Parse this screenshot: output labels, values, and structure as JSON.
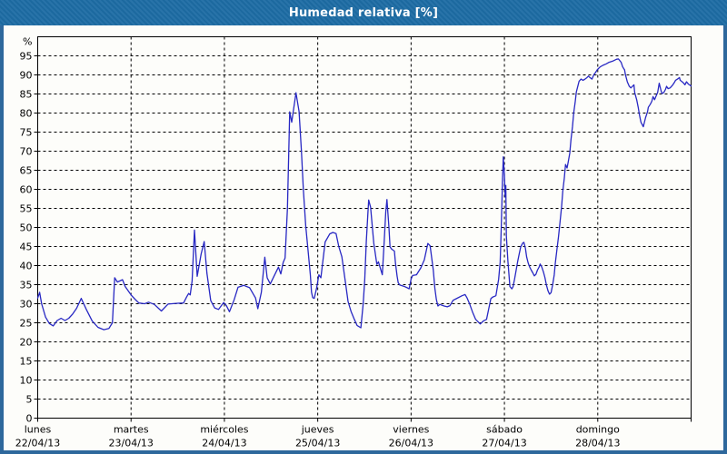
{
  "window": {
    "title": "Humedad relativa [%]",
    "title_bar_color": "#1d6ca4",
    "border_color": "#2e689c",
    "panel_background": "#fdfdfa"
  },
  "chart_data": {
    "type": "line",
    "title": "Humedad relativa [%]",
    "y_unit_label": "%",
    "ylim": [
      0,
      100
    ],
    "ytick_step": 5,
    "yticks": [
      0,
      5,
      10,
      15,
      20,
      25,
      30,
      35,
      40,
      45,
      50,
      55,
      60,
      65,
      70,
      75,
      80,
      85,
      90,
      95
    ],
    "grid": "dashed-black-both-axes",
    "legend": "none",
    "line_color": "#2828c3",
    "axis_color": "#000000",
    "days": [
      {
        "name": "lunes",
        "date": "22/04/13"
      },
      {
        "name": "martes",
        "date": "23/04/13"
      },
      {
        "name": "miércoles",
        "date": "24/04/13"
      },
      {
        "name": "jueves",
        "date": "25/04/13"
      },
      {
        "name": "viernes",
        "date": "26/04/13"
      },
      {
        "name": "sábado",
        "date": "27/04/13"
      },
      {
        "name": "domingo",
        "date": "28/04/13"
      }
    ],
    "series": [
      {
        "name": "Humedad relativa",
        "x_unit": "hours-from-monday-00:00",
        "points": [
          [
            0,
            31.5
          ],
          [
            0.5,
            33
          ],
          [
            1,
            30
          ],
          [
            2,
            26.5
          ],
          [
            3,
            24.8
          ],
          [
            4,
            24.2
          ],
          [
            5,
            25.6
          ],
          [
            6,
            26.2
          ],
          [
            7,
            25.6
          ],
          [
            8,
            26.2
          ],
          [
            9,
            27.3
          ],
          [
            10,
            28.8
          ],
          [
            11.2,
            31.4
          ],
          [
            12.5,
            28.5
          ],
          [
            14,
            25.5
          ],
          [
            15.5,
            23.8
          ],
          [
            17,
            23.2
          ],
          [
            18.3,
            23.5
          ],
          [
            19.2,
            25
          ],
          [
            19.8,
            36.8
          ],
          [
            20.5,
            35.7
          ],
          [
            21.8,
            36.3
          ],
          [
            22.5,
            34.5
          ],
          [
            24,
            32.3
          ],
          [
            25,
            31.2
          ],
          [
            26,
            30.2
          ],
          [
            27.5,
            30
          ],
          [
            28.5,
            30.4
          ],
          [
            30,
            29.8
          ],
          [
            31.8,
            28.1
          ],
          [
            33.5,
            29.9
          ],
          [
            35.5,
            30.1
          ],
          [
            37.5,
            30.2
          ],
          [
            38.3,
            31.8
          ],
          [
            38.8,
            32.7
          ],
          [
            39.2,
            32.3
          ],
          [
            39.7,
            36
          ],
          [
            40.3,
            49.3
          ],
          [
            41,
            37.2
          ],
          [
            42,
            43
          ],
          [
            42.8,
            46.3
          ],
          [
            43.5,
            38
          ],
          [
            44.5,
            30.8
          ],
          [
            45.5,
            28.9
          ],
          [
            46.5,
            28.5
          ],
          [
            47.8,
            30.3
          ],
          [
            48.5,
            29.5
          ],
          [
            49.3,
            27.9
          ],
          [
            50.5,
            31
          ],
          [
            51.5,
            34.3
          ],
          [
            53,
            34.8
          ],
          [
            54.5,
            34.2
          ],
          [
            56,
            31.5
          ],
          [
            56.6,
            28.7
          ],
          [
            57.5,
            33
          ],
          [
            58.4,
            42.2
          ],
          [
            59,
            36.8
          ],
          [
            59.8,
            35.2
          ],
          [
            61.9,
            39.6
          ],
          [
            62.5,
            37.8
          ],
          [
            63.1,
            40.8
          ],
          [
            63.6,
            42
          ],
          [
            64.2,
            55
          ],
          [
            64.8,
            80.3
          ],
          [
            65.3,
            77.6
          ],
          [
            66.4,
            85.3
          ],
          [
            67.2,
            80.4
          ],
          [
            67.8,
            70
          ],
          [
            68.3,
            60
          ],
          [
            68.9,
            50.5
          ],
          [
            69.5,
            44.2
          ],
          [
            70.1,
            37.6
          ],
          [
            70.4,
            33
          ],
          [
            70.7,
            31.6
          ],
          [
            71.1,
            31.4
          ],
          [
            71.7,
            34.1
          ],
          [
            72.3,
            37.6
          ],
          [
            72.8,
            36.8
          ],
          [
            73.9,
            46.2
          ],
          [
            75.1,
            48.3
          ],
          [
            75.9,
            48.7
          ],
          [
            76.7,
            48.4
          ],
          [
            77.4,
            45
          ],
          [
            78.2,
            42.3
          ],
          [
            79,
            36.5
          ],
          [
            79.8,
            30.6
          ],
          [
            80.6,
            27.9
          ],
          [
            81.4,
            25.9
          ],
          [
            82.1,
            24.3
          ],
          [
            83.1,
            23.7
          ],
          [
            83.7,
            30.1
          ],
          [
            84.1,
            36.5
          ],
          [
            84.5,
            46.4
          ],
          [
            84.9,
            54
          ],
          [
            85.1,
            57.2
          ],
          [
            85.6,
            55.3
          ],
          [
            86.4,
            45.9
          ],
          [
            87.2,
            40.3
          ],
          [
            87.6,
            41
          ],
          [
            88.6,
            37.6
          ],
          [
            89.1,
            46.4
          ],
          [
            89.5,
            54.1
          ],
          [
            89.8,
            57.3
          ],
          [
            90.3,
            50
          ],
          [
            90.6,
            44.9
          ],
          [
            91,
            44.3
          ],
          [
            91.7,
            43.8
          ],
          [
            92,
            40.6
          ],
          [
            92.4,
            37.2
          ],
          [
            92.7,
            35.5
          ],
          [
            93.1,
            34.9
          ],
          [
            94.1,
            34.6
          ],
          [
            95,
            34.2
          ],
          [
            95.5,
            33.9
          ],
          [
            96,
            36.5
          ],
          [
            96.4,
            37.4
          ],
          [
            97.4,
            37.6
          ],
          [
            98.5,
            39.4
          ],
          [
            99.4,
            41.5
          ],
          [
            100.3,
            45.8
          ],
          [
            100.9,
            45.2
          ],
          [
            101.7,
            38.8
          ],
          [
            102.1,
            34.1
          ],
          [
            102.5,
            31.1
          ],
          [
            102.9,
            29.4
          ],
          [
            103.4,
            29.8
          ],
          [
            104.5,
            29.4
          ],
          [
            105.3,
            29.2
          ],
          [
            106,
            29.5
          ],
          [
            106.8,
            30.9
          ],
          [
            107.6,
            31.3
          ],
          [
            109.1,
            32.1
          ],
          [
            109.9,
            32.4
          ],
          [
            110.4,
            31.5
          ],
          [
            111.1,
            29.8
          ],
          [
            111.8,
            27.8
          ],
          [
            112.6,
            25.9
          ],
          [
            113.8,
            24.7
          ],
          [
            114.6,
            25.5
          ],
          [
            115.4,
            25.9
          ],
          [
            116.5,
            31.3
          ],
          [
            116.9,
            31.7
          ],
          [
            117.8,
            32.1
          ],
          [
            118.5,
            36.4
          ],
          [
            118.9,
            40.9
          ],
          [
            119.2,
            50
          ],
          [
            119.5,
            62
          ],
          [
            119.7,
            68.5
          ],
          [
            120,
            63.5
          ],
          [
            120.2,
            58
          ],
          [
            120.35,
            61
          ],
          [
            120.5,
            47.8
          ],
          [
            120.7,
            44.3
          ],
          [
            120.9,
            41.2
          ],
          [
            121.4,
            34.5
          ],
          [
            121.7,
            34.2
          ],
          [
            121.9,
            33.9
          ],
          [
            122.2,
            34.4
          ],
          [
            122.6,
            36.4
          ],
          [
            123,
            38.7
          ],
          [
            123.4,
            41
          ],
          [
            123.8,
            43
          ],
          [
            124.2,
            44.9
          ],
          [
            124.7,
            45.9
          ],
          [
            125,
            46.1
          ],
          [
            125.4,
            44.5
          ],
          [
            125.7,
            42.3
          ],
          [
            126.1,
            40.7
          ],
          [
            126.5,
            39.6
          ],
          [
            126.9,
            38.8
          ],
          [
            127.3,
            38.1
          ],
          [
            127.7,
            37.3
          ],
          [
            128.1,
            37.7
          ],
          [
            128.5,
            38.8
          ],
          [
            128.9,
            39.6
          ],
          [
            129.2,
            40.4
          ],
          [
            129.6,
            39.6
          ],
          [
            130,
            38.4
          ],
          [
            130.4,
            36.9
          ],
          [
            130.8,
            34.9
          ],
          [
            131.2,
            33.4
          ],
          [
            131.6,
            32.5
          ],
          [
            132,
            32.9
          ],
          [
            132.4,
            34.9
          ],
          [
            132.8,
            37.6
          ],
          [
            133.1,
            40.7
          ],
          [
            133.5,
            44.1
          ],
          [
            133.9,
            47.6
          ],
          [
            134.3,
            51.5
          ],
          [
            134.7,
            55.5
          ],
          [
            135,
            59.5
          ],
          [
            135.4,
            63
          ],
          [
            135.7,
            66.5
          ],
          [
            136.1,
            65.6
          ],
          [
            136.4,
            67.2
          ],
          [
            136.8,
            69.5
          ],
          [
            137.1,
            73
          ],
          [
            137.5,
            76.5
          ],
          [
            137.8,
            80
          ],
          [
            138.2,
            83
          ],
          [
            138.5,
            85.5
          ],
          [
            138.9,
            87.2
          ],
          [
            139.2,
            88.3
          ],
          [
            139.7,
            88.9
          ],
          [
            140.2,
            88.6
          ],
          [
            140.6,
            88.8
          ],
          [
            141.1,
            89.2
          ],
          [
            141.6,
            89.7
          ],
          [
            142,
            89.3
          ],
          [
            142.5,
            88.9
          ],
          [
            143,
            90.1
          ],
          [
            143.4,
            90.6
          ],
          [
            143.9,
            91.4
          ],
          [
            144.6,
            92.1
          ],
          [
            145.3,
            92.5
          ],
          [
            146.2,
            92.9
          ],
          [
            146.9,
            93.3
          ],
          [
            147.8,
            93.6
          ],
          [
            148.8,
            94.1
          ],
          [
            149.3,
            94.2
          ],
          [
            150,
            93.3
          ],
          [
            150.4,
            92.1
          ],
          [
            150.9,
            91.3
          ],
          [
            151.1,
            90.1
          ],
          [
            151.6,
            88.2
          ],
          [
            152.1,
            87
          ],
          [
            152.5,
            86.6
          ],
          [
            153.3,
            87.4
          ],
          [
            153.5,
            85.4
          ],
          [
            154,
            83.5
          ],
          [
            154.4,
            81.5
          ],
          [
            154.7,
            79.6
          ],
          [
            155.1,
            77.6
          ],
          [
            155.7,
            76.4
          ],
          [
            156.3,
            78.8
          ],
          [
            156.8,
            80.4
          ],
          [
            157,
            81.5
          ],
          [
            157.5,
            82.3
          ],
          [
            157.9,
            83.1
          ],
          [
            158.2,
            84.3
          ],
          [
            158.6,
            83.5
          ],
          [
            159.1,
            84.7
          ],
          [
            159.4,
            85.4
          ],
          [
            159.8,
            87.8
          ],
          [
            160.3,
            85.8
          ],
          [
            160.5,
            85.1
          ],
          [
            161,
            85.4
          ],
          [
            161.4,
            86.2
          ],
          [
            161.7,
            87
          ],
          [
            162.1,
            86.4
          ],
          [
            162.6,
            86.6
          ],
          [
            163.3,
            87.4
          ],
          [
            163.8,
            88.2
          ],
          [
            164,
            88.6
          ],
          [
            164.5,
            88.9
          ],
          [
            165,
            89.3
          ],
          [
            165.2,
            88.6
          ],
          [
            165.7,
            88.2
          ],
          [
            166.1,
            87.8
          ],
          [
            166.4,
            87.4
          ],
          [
            166.8,
            88.2
          ],
          [
            167.3,
            87.6
          ],
          [
            168,
            87.1
          ]
        ]
      }
    ]
  }
}
